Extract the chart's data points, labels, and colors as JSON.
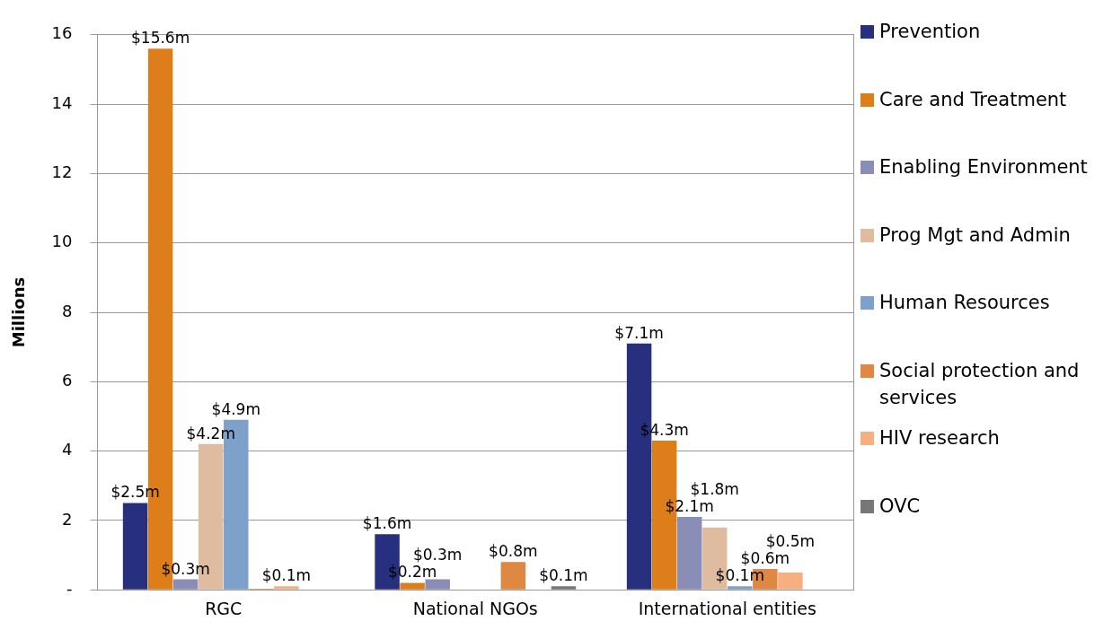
{
  "chart_data": {
    "type": "bar",
    "ylabel": "Millions",
    "categories": [
      "RGC",
      "National NGOs",
      "International entities"
    ],
    "ylim": [
      0,
      16
    ],
    "yticks": [
      {
        "value": 0,
        "label": "-"
      },
      2,
      4,
      6,
      8,
      10,
      12,
      14,
      16
    ],
    "grid": "y",
    "legend": "right",
    "series": [
      {
        "name": "Prevention",
        "color": "#27307e",
        "values": [
          2.5,
          1.6,
          7.1
        ],
        "value_labels": [
          "$2.5m",
          "$1.6m",
          "$7.1m"
        ]
      },
      {
        "name": "Care and Treatment",
        "color": "#dd7e1b",
        "values": [
          15.6,
          0.2,
          4.3
        ],
        "value_labels": [
          "$15.6m",
          "$0.2m",
          "$4.3m"
        ]
      },
      {
        "name": "Enabling Environment",
        "color": "#8a8db5",
        "values": [
          0.3,
          0.3,
          2.1
        ],
        "value_labels": [
          "$0.3m",
          "$0.3m",
          "$2.1m"
        ]
      },
      {
        "name": "Prog Mgt and Admin",
        "color": "#dfbc9f",
        "values": [
          4.2,
          0,
          1.8
        ],
        "value_labels": [
          "$4.2m",
          null,
          "$1.8m"
        ]
      },
      {
        "name": "Human Resources",
        "color": "#7ea1cb",
        "values": [
          4.9,
          0,
          0.1
        ],
        "value_labels": [
          "$4.9m",
          null,
          "$0.1m"
        ]
      },
      {
        "name": "Social protection and services",
        "color": "#de8843",
        "values": [
          0.03,
          0.8,
          0.6
        ],
        "value_labels": [
          null,
          "$0.8m",
          "$0.6m"
        ]
      },
      {
        "name": "HIV research",
        "color": "#f7ae80",
        "values": [
          0.1,
          0,
          0.5
        ],
        "value_labels": [
          "$0.1m",
          null,
          "$0.5m"
        ]
      },
      {
        "name": "OVC",
        "color": "#777777",
        "values": [
          0,
          0.1,
          0
        ],
        "value_labels": [
          null,
          "$0.1m",
          null
        ]
      }
    ]
  }
}
